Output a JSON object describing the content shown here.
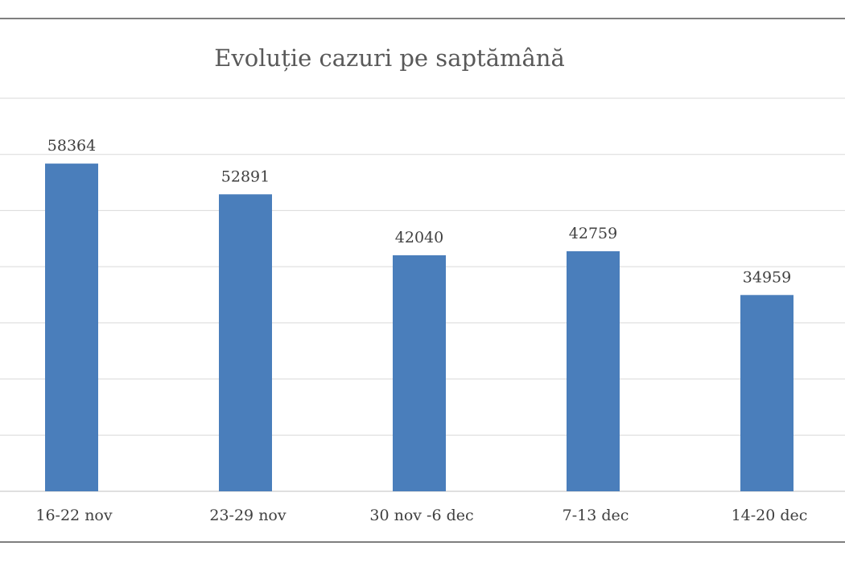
{
  "chart_data": {
    "type": "bar",
    "title": "Evoluție cazuri pe saptămână",
    "categories": [
      "16-22 nov",
      "23-29 nov",
      "30 nov -6 dec",
      "7-13 dec",
      "14-20 dec"
    ],
    "values": [
      58364,
      52891,
      42040,
      42759,
      34959
    ],
    "ylim": [
      0,
      70000
    ],
    "grid": true,
    "legend": "none",
    "colors": {
      "bar": "#4a7ebb",
      "grid": "#d9d9d9",
      "text": "#404040",
      "title": "#595959",
      "frame": "#7f7f7f"
    }
  }
}
